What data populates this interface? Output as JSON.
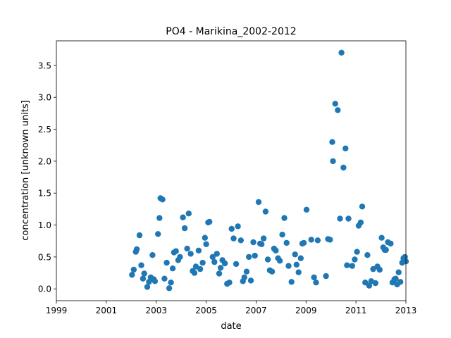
{
  "chart_data": {
    "type": "scatter",
    "title": "PO4 - Marikina_2002-2012",
    "xlabel": "date",
    "ylabel": "concentration [unknown units]",
    "xlim": [
      1999,
      2013
    ],
    "ylim": [
      -0.185,
      3.885
    ],
    "xticks": [
      "1999",
      "2001",
      "2003",
      "2005",
      "2007",
      "2009",
      "2011",
      "2013"
    ],
    "yticks": [
      "0.0",
      "0.5",
      "1.0",
      "1.5",
      "2.0",
      "2.5",
      "3.0",
      "3.5"
    ],
    "grid": false,
    "marker_color": "#1f77b4",
    "series": [
      {
        "x": [
          2002.03,
          2002.1,
          2002.18,
          2002.22,
          2002.33,
          2002.4,
          2002.47,
          2002.52,
          2002.64,
          2002.71,
          2002.78,
          2002.85,
          2002.9,
          2002.95,
          2003.07,
          2003.13,
          2003.17,
          2003.25,
          2003.33,
          2003.42,
          2003.52,
          2003.59,
          2003.66,
          2003.71,
          2003.79,
          2003.88,
          2003.95,
          2004.07,
          2004.14,
          2004.24,
          2004.3,
          2004.38,
          2004.46,
          2004.53,
          2004.59,
          2004.7,
          2004.76,
          2004.86,
          2004.95,
          2005.0,
          2005.08,
          2005.13,
          2005.26,
          2005.33,
          2005.43,
          2005.52,
          2005.58,
          2005.65,
          2005.75,
          2005.84,
          2005.93,
          2006.02,
          2006.1,
          2006.2,
          2006.27,
          2006.39,
          2006.47,
          2006.53,
          2006.62,
          2006.71,
          2006.79,
          2006.89,
          2006.95,
          2007.1,
          2007.16,
          2007.22,
          2007.3,
          2007.38,
          2007.47,
          2007.55,
          2007.64,
          2007.72,
          2007.79,
          2007.88,
          2007.95,
          2008.05,
          2008.13,
          2008.22,
          2008.3,
          2008.42,
          2008.56,
          2008.62,
          2008.7,
          2008.79,
          2008.85,
          2008.91,
          2009.02,
          2009.21,
          2009.32,
          2009.4,
          2009.47,
          2009.8,
          2009.88,
          2009.96,
          2010.05,
          2010.08,
          2010.17,
          2010.27,
          2010.36,
          2010.42,
          2010.5,
          2010.58,
          2010.64,
          2010.7,
          2010.85,
          2010.95,
          2011.04,
          2011.11,
          2011.19,
          2011.25,
          2011.37,
          2011.46,
          2011.53,
          2011.61,
          2011.69,
          2011.78,
          2011.86,
          2011.95,
          2012.03,
          2012.09,
          2012.15,
          2012.2,
          2012.28,
          2012.39,
          2012.46,
          2012.54,
          2012.59,
          2012.65,
          2012.71,
          2012.78,
          2012.85,
          2012.9,
          2012.96,
          2013.0
        ],
        "y": [
          0.22,
          0.3,
          0.58,
          0.62,
          0.84,
          0.37,
          0.16,
          0.24,
          0.03,
          0.11,
          0.18,
          0.53,
          0.15,
          0.12,
          0.86,
          1.11,
          1.42,
          1.4,
          0.16,
          0.41,
          0.01,
          0.1,
          0.32,
          0.57,
          0.59,
          0.45,
          0.5,
          1.12,
          0.95,
          0.63,
          1.18,
          0.55,
          0.28,
          0.25,
          0.35,
          0.6,
          0.31,
          0.41,
          0.8,
          0.7,
          1.04,
          1.05,
          0.5,
          0.42,
          0.55,
          0.24,
          0.33,
          0.45,
          0.4,
          0.08,
          0.1,
          0.94,
          0.79,
          0.39,
          0.98,
          0.76,
          0.12,
          0.18,
          0.27,
          0.5,
          0.13,
          0.73,
          0.52,
          1.36,
          0.71,
          0.7,
          0.79,
          1.21,
          0.46,
          0.29,
          0.27,
          0.63,
          0.6,
          0.48,
          0.44,
          0.85,
          1.11,
          0.72,
          0.36,
          0.11,
          0.54,
          0.38,
          0.26,
          0.48,
          0.71,
          0.72,
          1.24,
          0.77,
          0.18,
          0.1,
          0.76,
          0.2,
          0.78,
          0.77,
          2.3,
          2.0,
          2.9,
          2.8,
          1.1,
          3.7,
          1.9,
          2.2,
          0.37,
          1.1,
          0.36,
          0.46,
          0.58,
          0.99,
          1.04,
          1.29,
          0.1,
          0.53,
          0.05,
          0.12,
          0.31,
          0.09,
          0.35,
          0.3,
          0.8,
          0.65,
          0.61,
          0.61,
          0.73,
          0.71,
          0.1,
          0.15,
          0.16,
          0.07,
          0.26,
          0.11,
          0.41,
          0.48,
          0.5,
          0.43
        ]
      }
    ]
  }
}
